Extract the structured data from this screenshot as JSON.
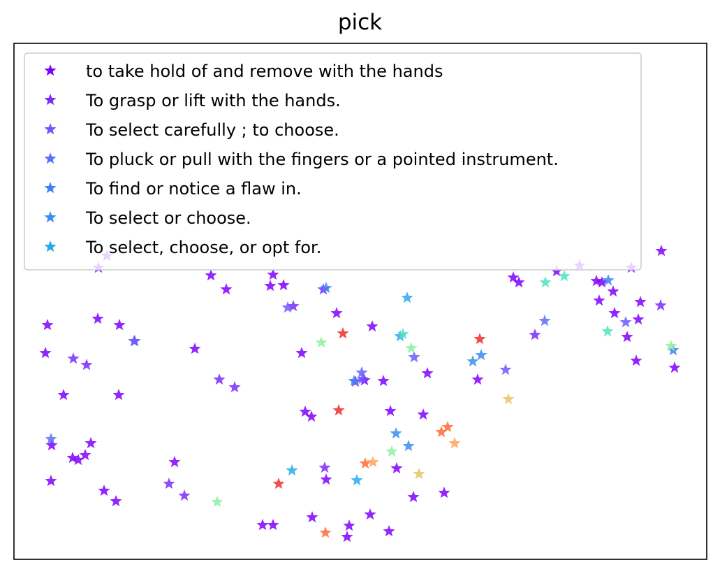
{
  "chart_data": {
    "type": "scatter",
    "title": "pick",
    "xlabel": "",
    "ylabel": "",
    "ticks_visible": false,
    "grid": false,
    "marker": "star",
    "legend": {
      "placement": "top-left",
      "entries_shown": 7
    },
    "series": [
      {
        "name": "to take hold of and remove with the hands",
        "color": "#8000ff",
        "points": [
          [
            68,
            465
          ],
          [
            65,
            505
          ],
          [
            91,
            565
          ],
          [
            104,
            655
          ],
          [
            112,
            658
          ],
          [
            122,
            651
          ],
          [
            130,
            634
          ],
          [
            73,
            688
          ],
          [
            74,
            637
          ],
          [
            149,
            702
          ],
          [
            166,
            717
          ],
          [
            170,
            565
          ],
          [
            171,
            465
          ],
          [
            140,
            456
          ],
          [
            141,
            383
          ],
          [
            153,
            366
          ],
          [
            250,
            661
          ],
          [
            279,
            499
          ],
          [
            302,
            394
          ],
          [
            324,
            414
          ],
          [
            387,
            409
          ],
          [
            406,
            408
          ],
          [
            391,
            393
          ],
          [
            432,
            505
          ],
          [
            437,
            589
          ],
          [
            446,
            596
          ],
          [
            447,
            740
          ],
          [
            467,
            686
          ],
          [
            482,
            448
          ],
          [
            497,
            768
          ],
          [
            500,
            752
          ],
          [
            530,
            736
          ],
          [
            557,
            760
          ],
          [
            549,
            545
          ],
          [
            533,
            467
          ],
          [
            522,
            544
          ],
          [
            568,
            670
          ],
          [
            559,
            588
          ],
          [
            592,
            711
          ],
          [
            606,
            593
          ],
          [
            612,
            534
          ],
          [
            636,
            705
          ],
          [
            684,
            543
          ],
          [
            735,
            397
          ],
          [
            743,
            404
          ],
          [
            797,
            388
          ],
          [
            830,
            380
          ],
          [
            854,
            402
          ],
          [
            858,
            430
          ],
          [
            862,
            404
          ],
          [
            878,
            417
          ],
          [
            880,
            448
          ],
          [
            898,
            482
          ],
          [
            911,
            516
          ],
          [
            914,
            457
          ],
          [
            917,
            432
          ],
          [
            904,
            383
          ],
          [
            947,
            359
          ],
          [
            966,
            526
          ],
          [
            376,
            751
          ],
          [
            391,
            751
          ]
        ]
      },
      {
        "name": "To grasp or lift with the hands.",
        "color": "#7a2bfe",
        "points": [
          [
            124,
            522
          ],
          [
            105,
            513
          ],
          [
            336,
            554
          ],
          [
            314,
            543
          ],
          [
            264,
            709
          ],
          [
            242,
            692
          ],
          [
            420,
            438
          ],
          [
            465,
            669
          ],
          [
            509,
            546
          ],
          [
            766,
            479
          ],
          [
            946,
            437
          ],
          [
            463,
            414
          ]
        ]
      },
      {
        "name": "To select carefully ; to choose.",
        "color": "#6a5afd",
        "points": [
          [
            192,
            488
          ],
          [
            193,
            488
          ],
          [
            412,
            440
          ],
          [
            518,
            533
          ],
          [
            519,
            542
          ],
          [
            593,
            511
          ],
          [
            724,
            529
          ],
          [
            896,
            461
          ]
        ]
      },
      {
        "name": "To pluck or pull with the fingers or a pointed instrument.",
        "color": "#5a6ff7",
        "points": [
          [
            780,
            459
          ],
          [
            73,
            628
          ]
        ]
      },
      {
        "name": "To find or notice a flaw in.",
        "color": "#4080f5",
        "points": [
          [
            871,
            401
          ],
          [
            964,
            501
          ],
          [
            467,
            412
          ],
          [
            507,
            545
          ]
        ]
      },
      {
        "name": "To select or choose.",
        "color": "#3a8df0",
        "points": [
          [
            585,
            638
          ],
          [
            677,
            517
          ],
          [
            689,
            508
          ],
          [
            567,
            620
          ]
        ]
      },
      {
        "name": "To select, choose, or opt for.",
        "color": "#2aa8ec",
        "points": [
          [
            583,
            426
          ],
          [
            511,
            687
          ],
          [
            418,
            673
          ],
          [
            573,
            481
          ]
        ]
      },
      {
        "name": "",
        "color": "#ef2b2b",
        "points": [
          [
            491,
            477
          ],
          [
            485,
            587
          ],
          [
            399,
            692
          ],
          [
            687,
            485
          ]
        ]
      },
      {
        "name": "",
        "color": "#ff6a3a",
        "points": [
          [
            466,
            762
          ],
          [
            523,
            663
          ],
          [
            641,
            611
          ],
          [
            632,
            618
          ]
        ]
      },
      {
        "name": "",
        "color": "#ffa25a",
        "points": [
          [
            651,
            634
          ],
          [
            534,
            661
          ]
        ]
      },
      {
        "name": "",
        "color": "#e6c466",
        "points": [
          [
            728,
            571
          ],
          [
            600,
            678
          ]
        ]
      },
      {
        "name": "",
        "color": "#8ef0a0",
        "points": [
          [
            311,
            718
          ],
          [
            460,
            490
          ],
          [
            589,
            498
          ],
          [
            561,
            646
          ],
          [
            961,
            495
          ]
        ]
      },
      {
        "name": "",
        "color": "#50e0c0",
        "points": [
          [
            870,
            474
          ],
          [
            781,
            404
          ],
          [
            808,
            395
          ],
          [
            577,
            478
          ]
        ]
      }
    ]
  }
}
